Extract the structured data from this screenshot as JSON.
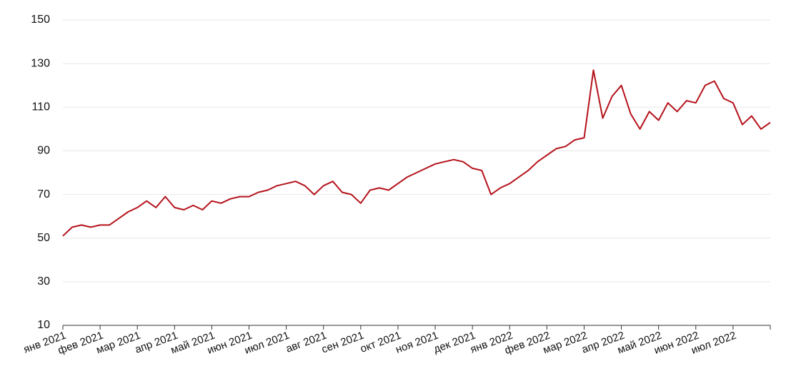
{
  "chart_data": {
    "type": "line",
    "x": [
      "янв 2021",
      null,
      null,
      null,
      "фев 2021",
      null,
      null,
      null,
      "мар 2021",
      null,
      null,
      null,
      "апр 2021",
      null,
      null,
      null,
      "май 2021",
      null,
      null,
      null,
      "июн 2021",
      null,
      null,
      null,
      "июл 2021",
      null,
      null,
      null,
      "авг 2021",
      null,
      null,
      null,
      "сен 2021",
      null,
      null,
      null,
      "окт 2021",
      null,
      null,
      null,
      "ноя 2021",
      null,
      null,
      null,
      "дек 2021",
      null,
      null,
      null,
      "янв 2022",
      null,
      null,
      null,
      "фев 2022",
      null,
      null,
      null,
      "мар 2022",
      null,
      null,
      null,
      "апр 2022",
      null,
      null,
      null,
      "май 2022",
      null,
      null,
      null,
      "июн 2022",
      null,
      null,
      null,
      "июл 2022",
      null,
      null,
      null,
      null
    ],
    "values": [
      51,
      55,
      56,
      55,
      56,
      56,
      59,
      62,
      64,
      67,
      64,
      69,
      64,
      63,
      65,
      63,
      67,
      66,
      68,
      69,
      69,
      71,
      72,
      74,
      75,
      76,
      74,
      70,
      74,
      76,
      71,
      70,
      66,
      72,
      73,
      72,
      75,
      78,
      80,
      82,
      84,
      85,
      86,
      85,
      82,
      81,
      70,
      73,
      75,
      78,
      81,
      85,
      88,
      91,
      92,
      95,
      96,
      127,
      105,
      115,
      120,
      107,
      100,
      108,
      104,
      112,
      108,
      113,
      112,
      120,
      122,
      114,
      112,
      102,
      106,
      100,
      103
    ],
    "color": "#b5121b",
    "ylim": [
      10,
      150
    ],
    "yticks": [
      10,
      30,
      50,
      70,
      90,
      110,
      130,
      150
    ],
    "grid": true
  }
}
